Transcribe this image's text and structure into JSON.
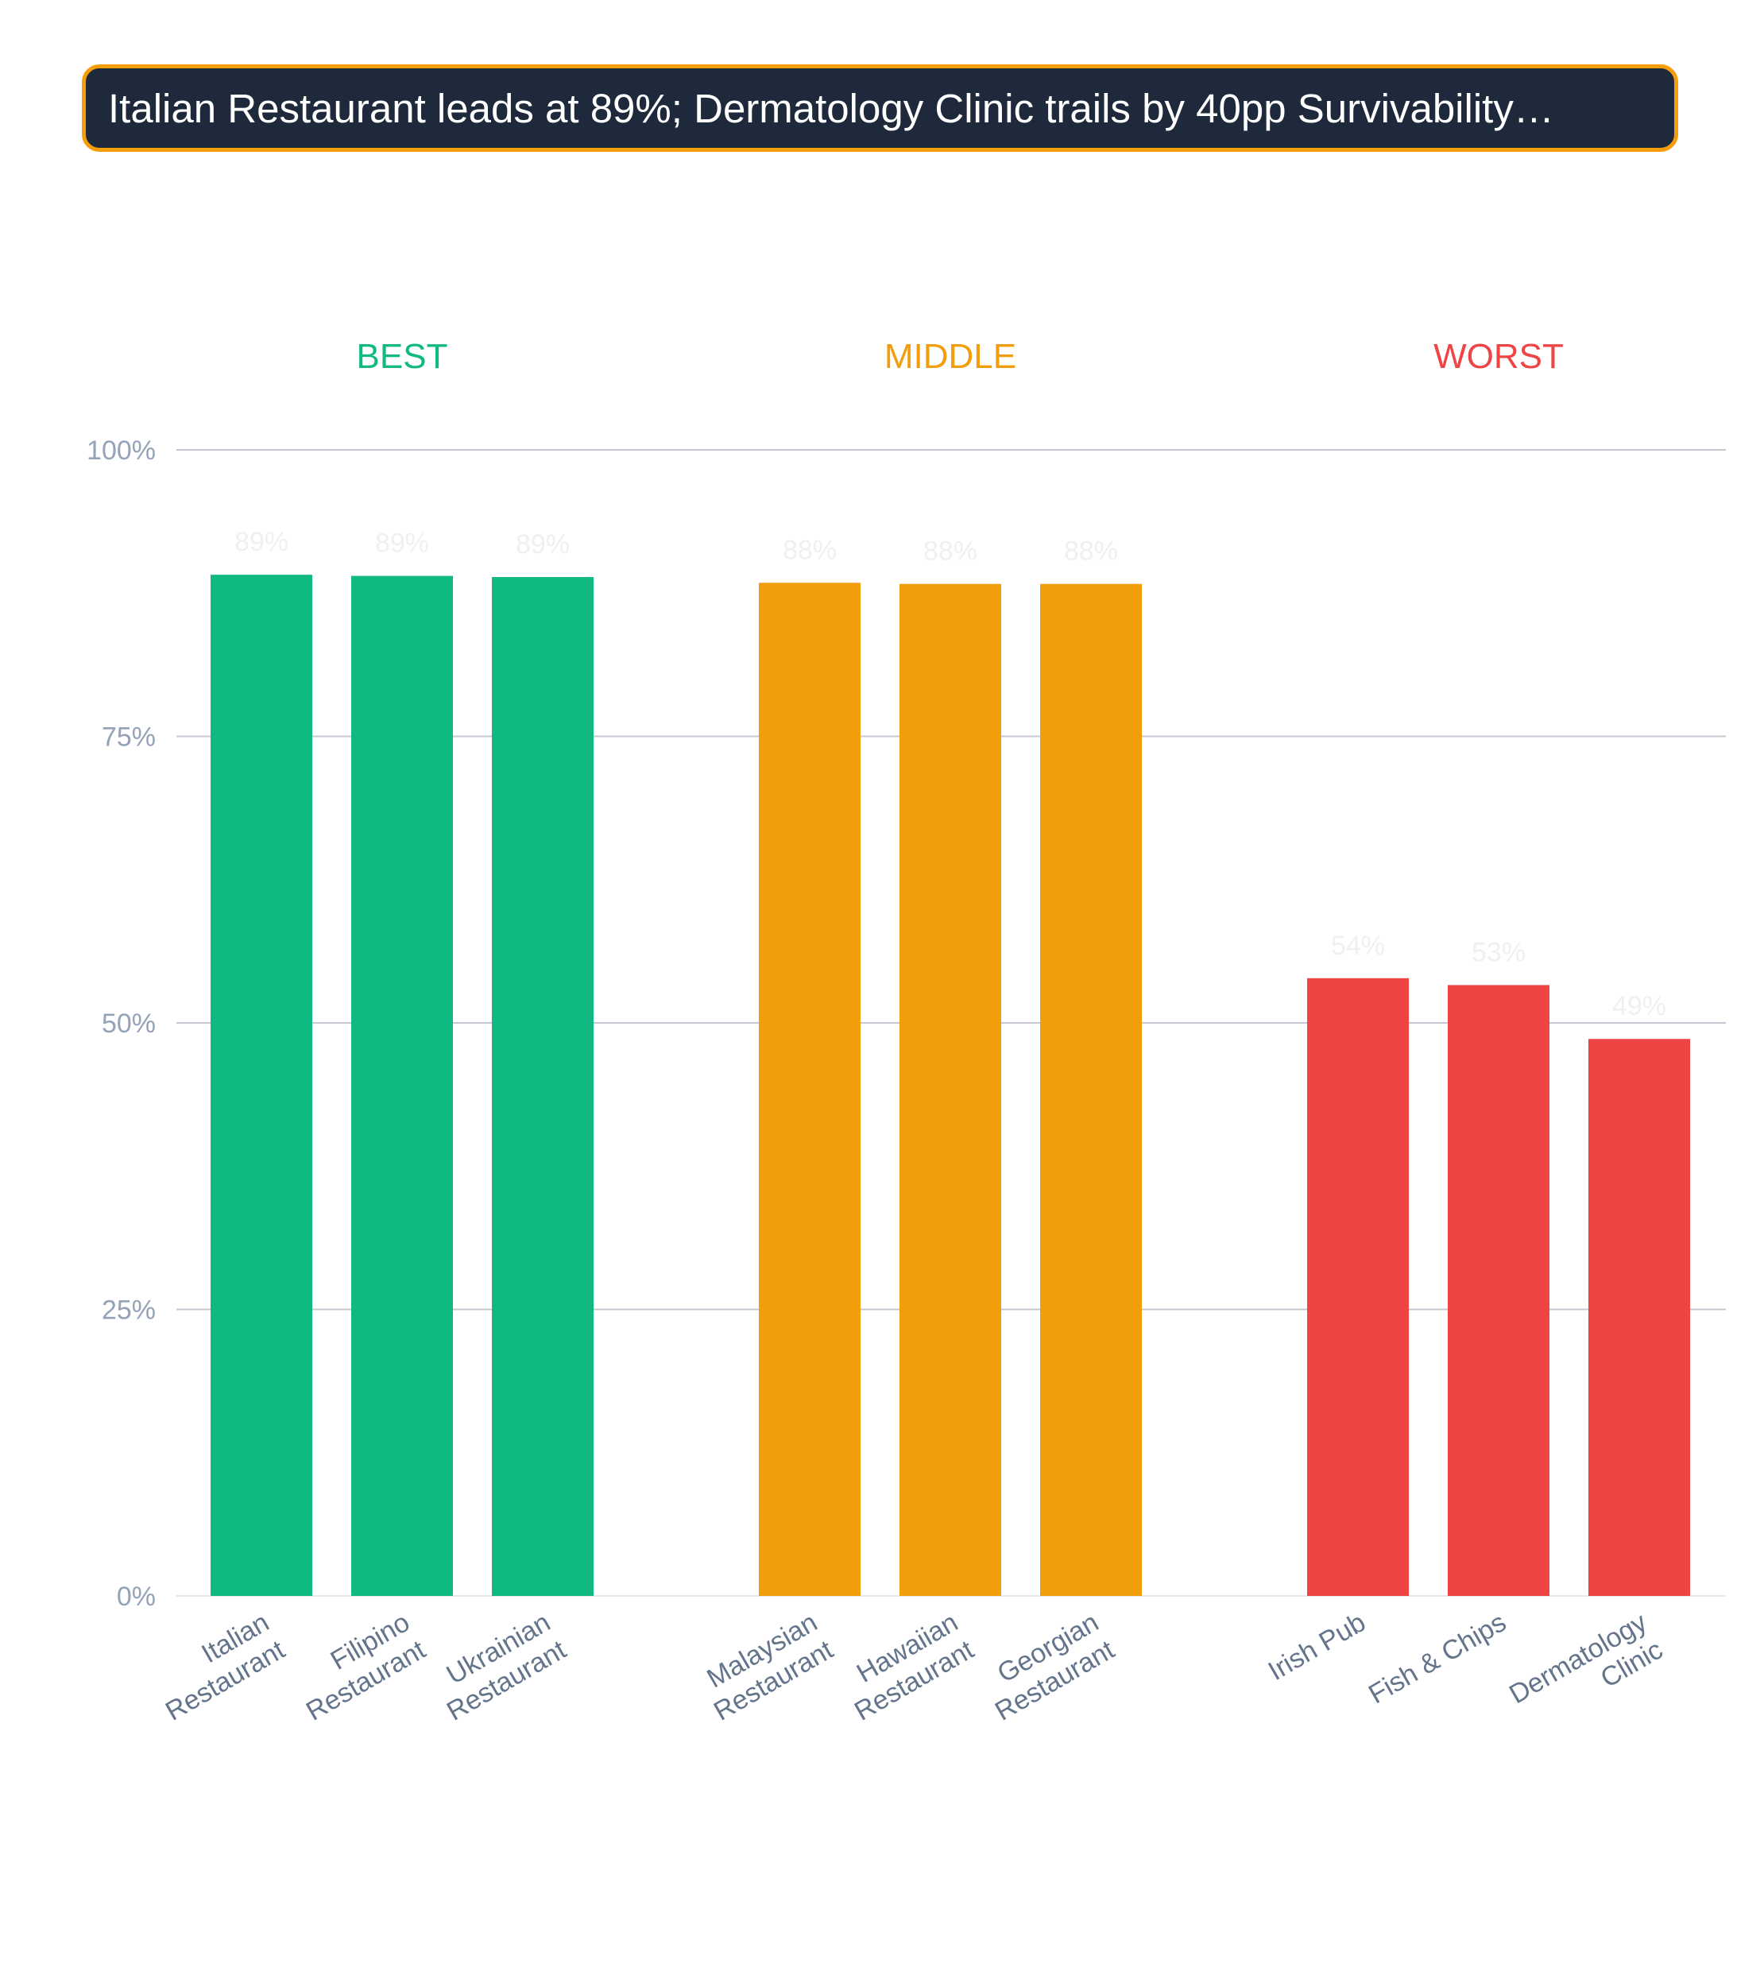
{
  "title": "Italian Restaurant leads at 89%; Dermatology Clinic trails by 40pp Survivability…",
  "chart_data": {
    "type": "bar",
    "ylim": [
      0,
      100
    ],
    "yticks": [
      "0%",
      "25%",
      "50%",
      "75%",
      "100%"
    ],
    "grid": true,
    "groups": [
      {
        "name": "BEST",
        "color": "#10b981",
        "bars": [
          {
            "category": [
              "Italian",
              "Restaurant"
            ],
            "value": 89.1,
            "label": "89%"
          },
          {
            "category": [
              "Filipino",
              "Restaurant"
            ],
            "value": 89.0,
            "label": "89%"
          },
          {
            "category": [
              "Ukrainian",
              "Restaurant"
            ],
            "value": 88.9,
            "label": "89%"
          }
        ]
      },
      {
        "name": "MIDDLE",
        "color": "#f29e0c",
        "bars": [
          {
            "category": [
              "Malaysian",
              "Restaurant"
            ],
            "value": 88.4,
            "label": "88%"
          },
          {
            "category": [
              "Hawaiian",
              "Restaurant"
            ],
            "value": 88.3,
            "label": "88%"
          },
          {
            "category": [
              "Georgian",
              "Restaurant"
            ],
            "value": 88.3,
            "label": "88%"
          }
        ]
      },
      {
        "name": "WORST",
        "color": "#ef4444",
        "bars": [
          {
            "category": [
              "Irish Pub"
            ],
            "value": 53.9,
            "label": "54%"
          },
          {
            "category": [
              "Fish & Chips"
            ],
            "value": 53.3,
            "label": "53%"
          },
          {
            "category": [
              "Dermatology",
              "Clinic"
            ],
            "value": 48.6,
            "label": "49%"
          }
        ]
      }
    ]
  }
}
